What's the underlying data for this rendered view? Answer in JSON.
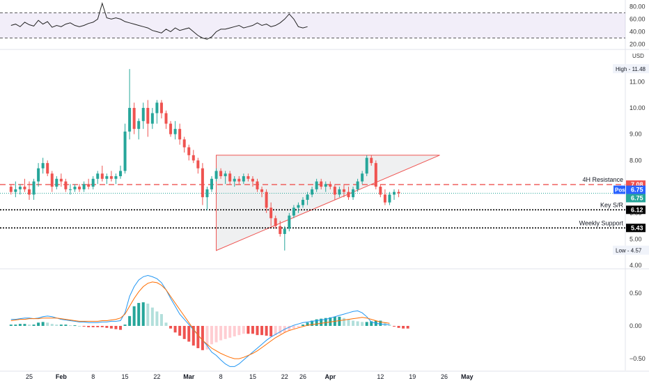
{
  "chart_data": [
    {
      "type": "line",
      "panel": "rsi",
      "y_ticks": [
        20,
        40,
        60,
        80
      ],
      "ylim": [
        13,
        88
      ],
      "band": {
        "upper": 70,
        "lower": 30,
        "fill": "#7e57c2"
      },
      "line_color": "#222222",
      "series": [
        {
          "x": [
            "Jan 21",
            "Jan 22",
            "Jan 23",
            "Jan 24",
            "Jan 25",
            "Jan 26",
            "Jan 27",
            "Jan 28",
            "Jan 29",
            "Jan 30",
            "Jan 31",
            "Feb 1",
            "Feb 2",
            "Feb 3",
            "Feb 4",
            "Feb 5",
            "Feb 6",
            "Feb 7",
            "Feb 8",
            "Feb 9",
            "Feb 10",
            "Feb 11",
            "Feb 12",
            "Feb 13",
            "Feb 14",
            "Feb 15",
            "Feb 16",
            "Feb 17",
            "Feb 18",
            "Feb 19",
            "Feb 20",
            "Feb 21",
            "Feb 22",
            "Feb 23",
            "Feb 24",
            "Feb 25",
            "Feb 26",
            "Feb 27",
            "Feb 28",
            "Mar 1",
            "Mar 2",
            "Mar 3",
            "Mar 4",
            "Mar 5",
            "Mar 6",
            "Mar 7",
            "Mar 8",
            "Mar 9",
            "Mar 10",
            "Mar 11",
            "Mar 12",
            "Mar 13",
            "Mar 14",
            "Mar 15",
            "Mar 16",
            "Mar 17",
            "Mar 18",
            "Mar 19",
            "Mar 20",
            "Mar 21",
            "Mar 22",
            "Mar 23",
            "Mar 24",
            "Mar 25",
            "Mar 26",
            "Mar 27"
          ],
          "y": [
            50,
            52,
            48,
            55,
            51,
            49,
            58,
            52,
            56,
            47,
            50,
            48,
            52,
            54,
            50,
            48,
            50,
            53,
            55,
            60,
            85,
            62,
            60,
            62,
            60,
            56,
            54,
            52,
            50,
            48,
            46,
            42,
            40,
            38,
            44,
            40,
            46,
            42,
            44,
            46,
            40,
            34,
            30,
            28,
            32,
            40,
            44,
            44,
            46,
            48,
            50,
            46,
            48,
            50,
            54,
            50,
            52,
            48,
            50,
            54,
            60,
            68,
            60,
            48,
            46,
            48
          ]
        }
      ]
    },
    {
      "type": "candlestick",
      "panel": "price",
      "currency": "USD",
      "y_ticks": [
        4.0,
        5.0,
        6.0,
        7.0,
        8.0,
        9.0,
        10.0,
        11.0
      ],
      "ylim": [
        3.9,
        12.2
      ],
      "x_tick_labels": [
        "25",
        "Feb",
        "8",
        "15",
        "22",
        "Mar",
        "8",
        "15",
        "22",
        "26",
        "Apr",
        "12",
        "19",
        "26",
        "May"
      ],
      "x_tick_dates": [
        "Jan 25",
        "Feb 1",
        "Feb 8",
        "Feb 15",
        "Feb 22",
        "Mar 1",
        "Mar 8",
        "Mar 15",
        "Mar 22",
        "Mar 26",
        "Apr 1",
        "Apr 12",
        "Apr 19",
        "Apr 26",
        "May 1"
      ],
      "candles": [
        [
          7.0,
          7.1,
          6.7,
          6.8
        ],
        [
          6.8,
          7.2,
          6.6,
          6.9
        ],
        [
          6.9,
          7.1,
          6.7,
          7.0
        ],
        [
          7.0,
          7.3,
          6.8,
          6.9
        ],
        [
          6.9,
          7.2,
          6.5,
          6.7
        ],
        [
          6.7,
          7.3,
          6.5,
          7.2
        ],
        [
          7.2,
          7.9,
          7.0,
          7.7
        ],
        [
          7.7,
          8.1,
          7.5,
          7.9
        ],
        [
          7.9,
          8.0,
          7.4,
          7.5
        ],
        [
          7.5,
          7.6,
          6.8,
          7.0
        ],
        [
          7.0,
          7.4,
          6.9,
          7.3
        ],
        [
          7.3,
          7.5,
          7.0,
          7.2
        ],
        [
          7.2,
          7.3,
          6.8,
          6.9
        ],
        [
          6.9,
          7.1,
          6.7,
          6.9
        ],
        [
          6.9,
          7.1,
          6.8,
          7.0
        ],
        [
          7.0,
          7.1,
          6.8,
          6.9
        ],
        [
          6.9,
          7.2,
          6.8,
          7.1
        ],
        [
          7.1,
          7.3,
          6.9,
          7.0
        ],
        [
          7.0,
          7.4,
          6.9,
          7.3
        ],
        [
          7.3,
          7.6,
          7.1,
          7.5
        ],
        [
          7.5,
          7.8,
          7.2,
          7.3
        ],
        [
          7.3,
          7.5,
          7.1,
          7.4
        ],
        [
          7.4,
          7.6,
          7.2,
          7.3
        ],
        [
          7.3,
          7.5,
          7.1,
          7.4
        ],
        [
          7.4,
          7.8,
          7.3,
          7.6
        ],
        [
          7.6,
          9.4,
          7.5,
          9.1
        ],
        [
          9.1,
          11.48,
          8.8,
          10.0
        ],
        [
          10.0,
          10.2,
          9.0,
          9.2
        ],
        [
          9.2,
          9.6,
          8.8,
          9.5
        ],
        [
          9.5,
          10.2,
          9.2,
          10.0
        ],
        [
          10.0,
          10.3,
          8.9,
          9.4
        ],
        [
          9.4,
          10.0,
          9.2,
          9.8
        ],
        [
          9.8,
          10.3,
          9.4,
          10.2
        ],
        [
          10.2,
          10.3,
          9.6,
          9.8
        ],
        [
          9.8,
          9.9,
          9.2,
          9.4
        ],
        [
          9.4,
          9.5,
          8.9,
          9.0
        ],
        [
          9.0,
          9.5,
          8.8,
          9.2
        ],
        [
          9.2,
          9.4,
          8.6,
          8.8
        ],
        [
          8.8,
          8.9,
          8.3,
          8.5
        ],
        [
          8.5,
          8.6,
          8.0,
          8.2
        ],
        [
          8.2,
          8.4,
          7.9,
          8.0
        ],
        [
          8.0,
          8.1,
          7.5,
          7.7
        ],
        [
          7.7,
          7.9,
          6.3,
          6.6
        ],
        [
          6.6,
          7.0,
          6.1,
          6.9
        ],
        [
          6.9,
          7.4,
          6.8,
          7.3
        ],
        [
          7.3,
          7.7,
          7.2,
          7.6
        ],
        [
          7.6,
          7.7,
          7.3,
          7.4
        ],
        [
          7.4,
          7.6,
          7.1,
          7.5
        ],
        [
          7.5,
          7.6,
          7.1,
          7.2
        ],
        [
          7.2,
          7.4,
          7.0,
          7.3
        ],
        [
          7.3,
          7.4,
          7.1,
          7.2
        ],
        [
          7.2,
          7.5,
          7.1,
          7.4
        ],
        [
          7.4,
          7.5,
          7.2,
          7.3
        ],
        [
          7.3,
          7.4,
          7.0,
          7.2
        ],
        [
          7.2,
          7.3,
          6.8,
          6.9
        ],
        [
          6.9,
          7.0,
          6.6,
          6.8
        ],
        [
          6.8,
          6.9,
          6.0,
          6.2
        ],
        [
          6.2,
          6.4,
          5.5,
          5.8
        ],
        [
          5.8,
          5.9,
          5.4,
          5.5
        ],
        [
          5.5,
          5.7,
          5.1,
          5.2
        ],
        [
          5.2,
          5.5,
          4.57,
          5.4
        ],
        [
          5.4,
          6.0,
          5.3,
          5.9
        ],
        [
          5.9,
          6.3,
          5.8,
          6.2
        ],
        [
          6.2,
          6.4,
          6.0,
          6.3
        ],
        [
          6.3,
          6.6,
          6.2,
          6.5
        ],
        [
          6.5,
          6.8,
          6.3,
          6.7
        ],
        [
          6.7,
          7.0,
          6.6,
          6.9
        ],
        [
          6.9,
          7.3,
          6.8,
          7.2
        ],
        [
          7.2,
          7.3,
          6.9,
          7.0
        ],
        [
          7.0,
          7.2,
          6.8,
          7.1
        ],
        [
          7.1,
          7.2,
          6.9,
          7.0
        ],
        [
          7.0,
          7.1,
          6.5,
          6.7
        ],
        [
          6.7,
          7.0,
          6.6,
          6.9
        ],
        [
          6.9,
          7.1,
          6.6,
          6.8
        ],
        [
          6.8,
          7.0,
          6.5,
          6.6
        ],
        [
          6.6,
          7.0,
          6.5,
          6.9
        ],
        [
          6.9,
          7.3,
          6.8,
          7.2
        ],
        [
          7.2,
          7.6,
          7.1,
          7.5
        ],
        [
          7.5,
          8.2,
          7.4,
          8.1
        ],
        [
          8.1,
          8.2,
          7.8,
          7.9
        ],
        [
          7.9,
          8.0,
          6.9,
          7.0
        ],
        [
          7.0,
          7.1,
          6.6,
          6.7
        ],
        [
          6.7,
          6.9,
          6.3,
          6.4
        ],
        [
          6.4,
          6.8,
          6.3,
          6.7
        ],
        [
          6.7,
          6.9,
          6.5,
          6.8
        ],
        [
          6.8,
          6.9,
          6.6,
          6.75
        ]
      ],
      "up_color": "#26a69a",
      "down_color": "#ef5350",
      "levels": [
        {
          "label": "4H Resistance",
          "value": 7.08,
          "value_text": "7.08",
          "style": "dashed",
          "color": "#ef5350"
        },
        {
          "label": "Key S/R",
          "value": 6.12,
          "value_text": "6.12",
          "style": "dotted",
          "color": "#000000"
        },
        {
          "label": "Weekly Support",
          "value": 5.43,
          "value_text": "5.43",
          "style": "dotted",
          "color": "#000000"
        }
      ],
      "price_tags": [
        {
          "label": "Post",
          "value": 6.75,
          "value_text": "6.75",
          "color": "#2962ff"
        },
        {
          "label": "",
          "value": 6.75,
          "value_text": "6.75",
          "color": "#26a69a"
        }
      ],
      "high": {
        "label": "High",
        "value": 11.48,
        "value_text": "11.48"
      },
      "low": {
        "label": "Low",
        "value": 4.57,
        "value_text": "4.57"
      },
      "ascending_triangle": {
        "resistance": 8.2,
        "from_date": "Mar 7",
        "to_date": "Apr 25",
        "base_low": 4.57,
        "color": "#ef5350"
      }
    },
    {
      "type": "macd",
      "panel": "macd",
      "y_ticks": [
        -0.5,
        0.0,
        0.5
      ],
      "y_tick_labels": [
        "−0.50",
        "0.00",
        "0.50"
      ],
      "ylim": [
        -0.68,
        0.85
      ],
      "macd_color": "#2196f3",
      "signal_color": "#ff6d00",
      "histogram": [
        0.02,
        0.02,
        0.03,
        0.03,
        0.02,
        0.02,
        0.05,
        0.06,
        0.05,
        0.03,
        0.02,
        0.02,
        0.02,
        0.01,
        0.01,
        0.0,
        -0.01,
        -0.02,
        -0.02,
        -0.02,
        -0.02,
        -0.03,
        -0.04,
        -0.05,
        -0.06,
        0.02,
        0.15,
        0.3,
        0.35,
        0.36,
        0.34,
        0.28,
        0.22,
        0.18,
        0.05,
        -0.04,
        -0.1,
        -0.15,
        -0.2,
        -0.24,
        -0.3,
        -0.34,
        -0.37,
        -0.36,
        -0.28,
        -0.25,
        -0.22,
        -0.2,
        -0.18,
        -0.16,
        -0.14,
        -0.12,
        -0.12,
        -0.12,
        -0.14,
        -0.14,
        -0.15,
        -0.16,
        -0.14,
        -0.12,
        -0.1,
        -0.07,
        -0.04,
        -0.02,
        0.02,
        0.05,
        0.08,
        0.1,
        0.11,
        0.12,
        0.13,
        0.14,
        0.14,
        0.12,
        0.1,
        0.08,
        0.07,
        0.06,
        0.06,
        0.07,
        0.08,
        0.08,
        0.05,
        0.02,
        -0.01,
        -0.03,
        -0.04,
        -0.04
      ],
      "macd": [
        0.1,
        0.1,
        0.11,
        0.12,
        0.12,
        0.11,
        0.12,
        0.14,
        0.15,
        0.14,
        0.12,
        0.1,
        0.09,
        0.08,
        0.07,
        0.06,
        0.06,
        0.05,
        0.05,
        0.05,
        0.06,
        0.06,
        0.07,
        0.07,
        0.08,
        0.2,
        0.45,
        0.6,
        0.7,
        0.75,
        0.77,
        0.75,
        0.72,
        0.66,
        0.55,
        0.42,
        0.3,
        0.18,
        0.1,
        0.02,
        -0.06,
        -0.14,
        -0.22,
        -0.3,
        -0.4,
        -0.45,
        -0.52,
        -0.58,
        -0.62,
        -0.62,
        -0.58,
        -0.52,
        -0.46,
        -0.4,
        -0.34,
        -0.28,
        -0.22,
        -0.17,
        -0.13,
        -0.09,
        -0.05,
        -0.02,
        0.01,
        0.03,
        0.05,
        0.06,
        0.07,
        0.08,
        0.09,
        0.1,
        0.12,
        0.14,
        0.16,
        0.18,
        0.2,
        0.22,
        0.23,
        0.2,
        0.14,
        0.06,
        0.04,
        0.03,
        0.02,
        0.02
      ],
      "signal": [
        0.08,
        0.09,
        0.1,
        0.1,
        0.11,
        0.11,
        0.11,
        0.12,
        0.12,
        0.12,
        0.12,
        0.11,
        0.1,
        0.09,
        0.08,
        0.07,
        0.07,
        0.07,
        0.07,
        0.07,
        0.08,
        0.08,
        0.09,
        0.1,
        0.12,
        0.18,
        0.3,
        0.42,
        0.52,
        0.6,
        0.65,
        0.67,
        0.66,
        0.62,
        0.55,
        0.45,
        0.35,
        0.25,
        0.15,
        0.05,
        -0.05,
        -0.14,
        -0.22,
        -0.28,
        -0.34,
        -0.38,
        -0.42,
        -0.45,
        -0.48,
        -0.5,
        -0.5,
        -0.48,
        -0.45,
        -0.42,
        -0.38,
        -0.33,
        -0.28,
        -0.23,
        -0.18,
        -0.14,
        -0.1,
        -0.07,
        -0.05,
        -0.03,
        -0.01,
        0.01,
        0.02,
        0.03,
        0.04,
        0.05,
        0.06,
        0.07,
        0.08,
        0.09,
        0.1,
        0.11,
        0.12,
        0.13,
        0.12,
        0.1,
        0.08,
        0.06,
        0.05,
        0.04
      ]
    }
  ]
}
